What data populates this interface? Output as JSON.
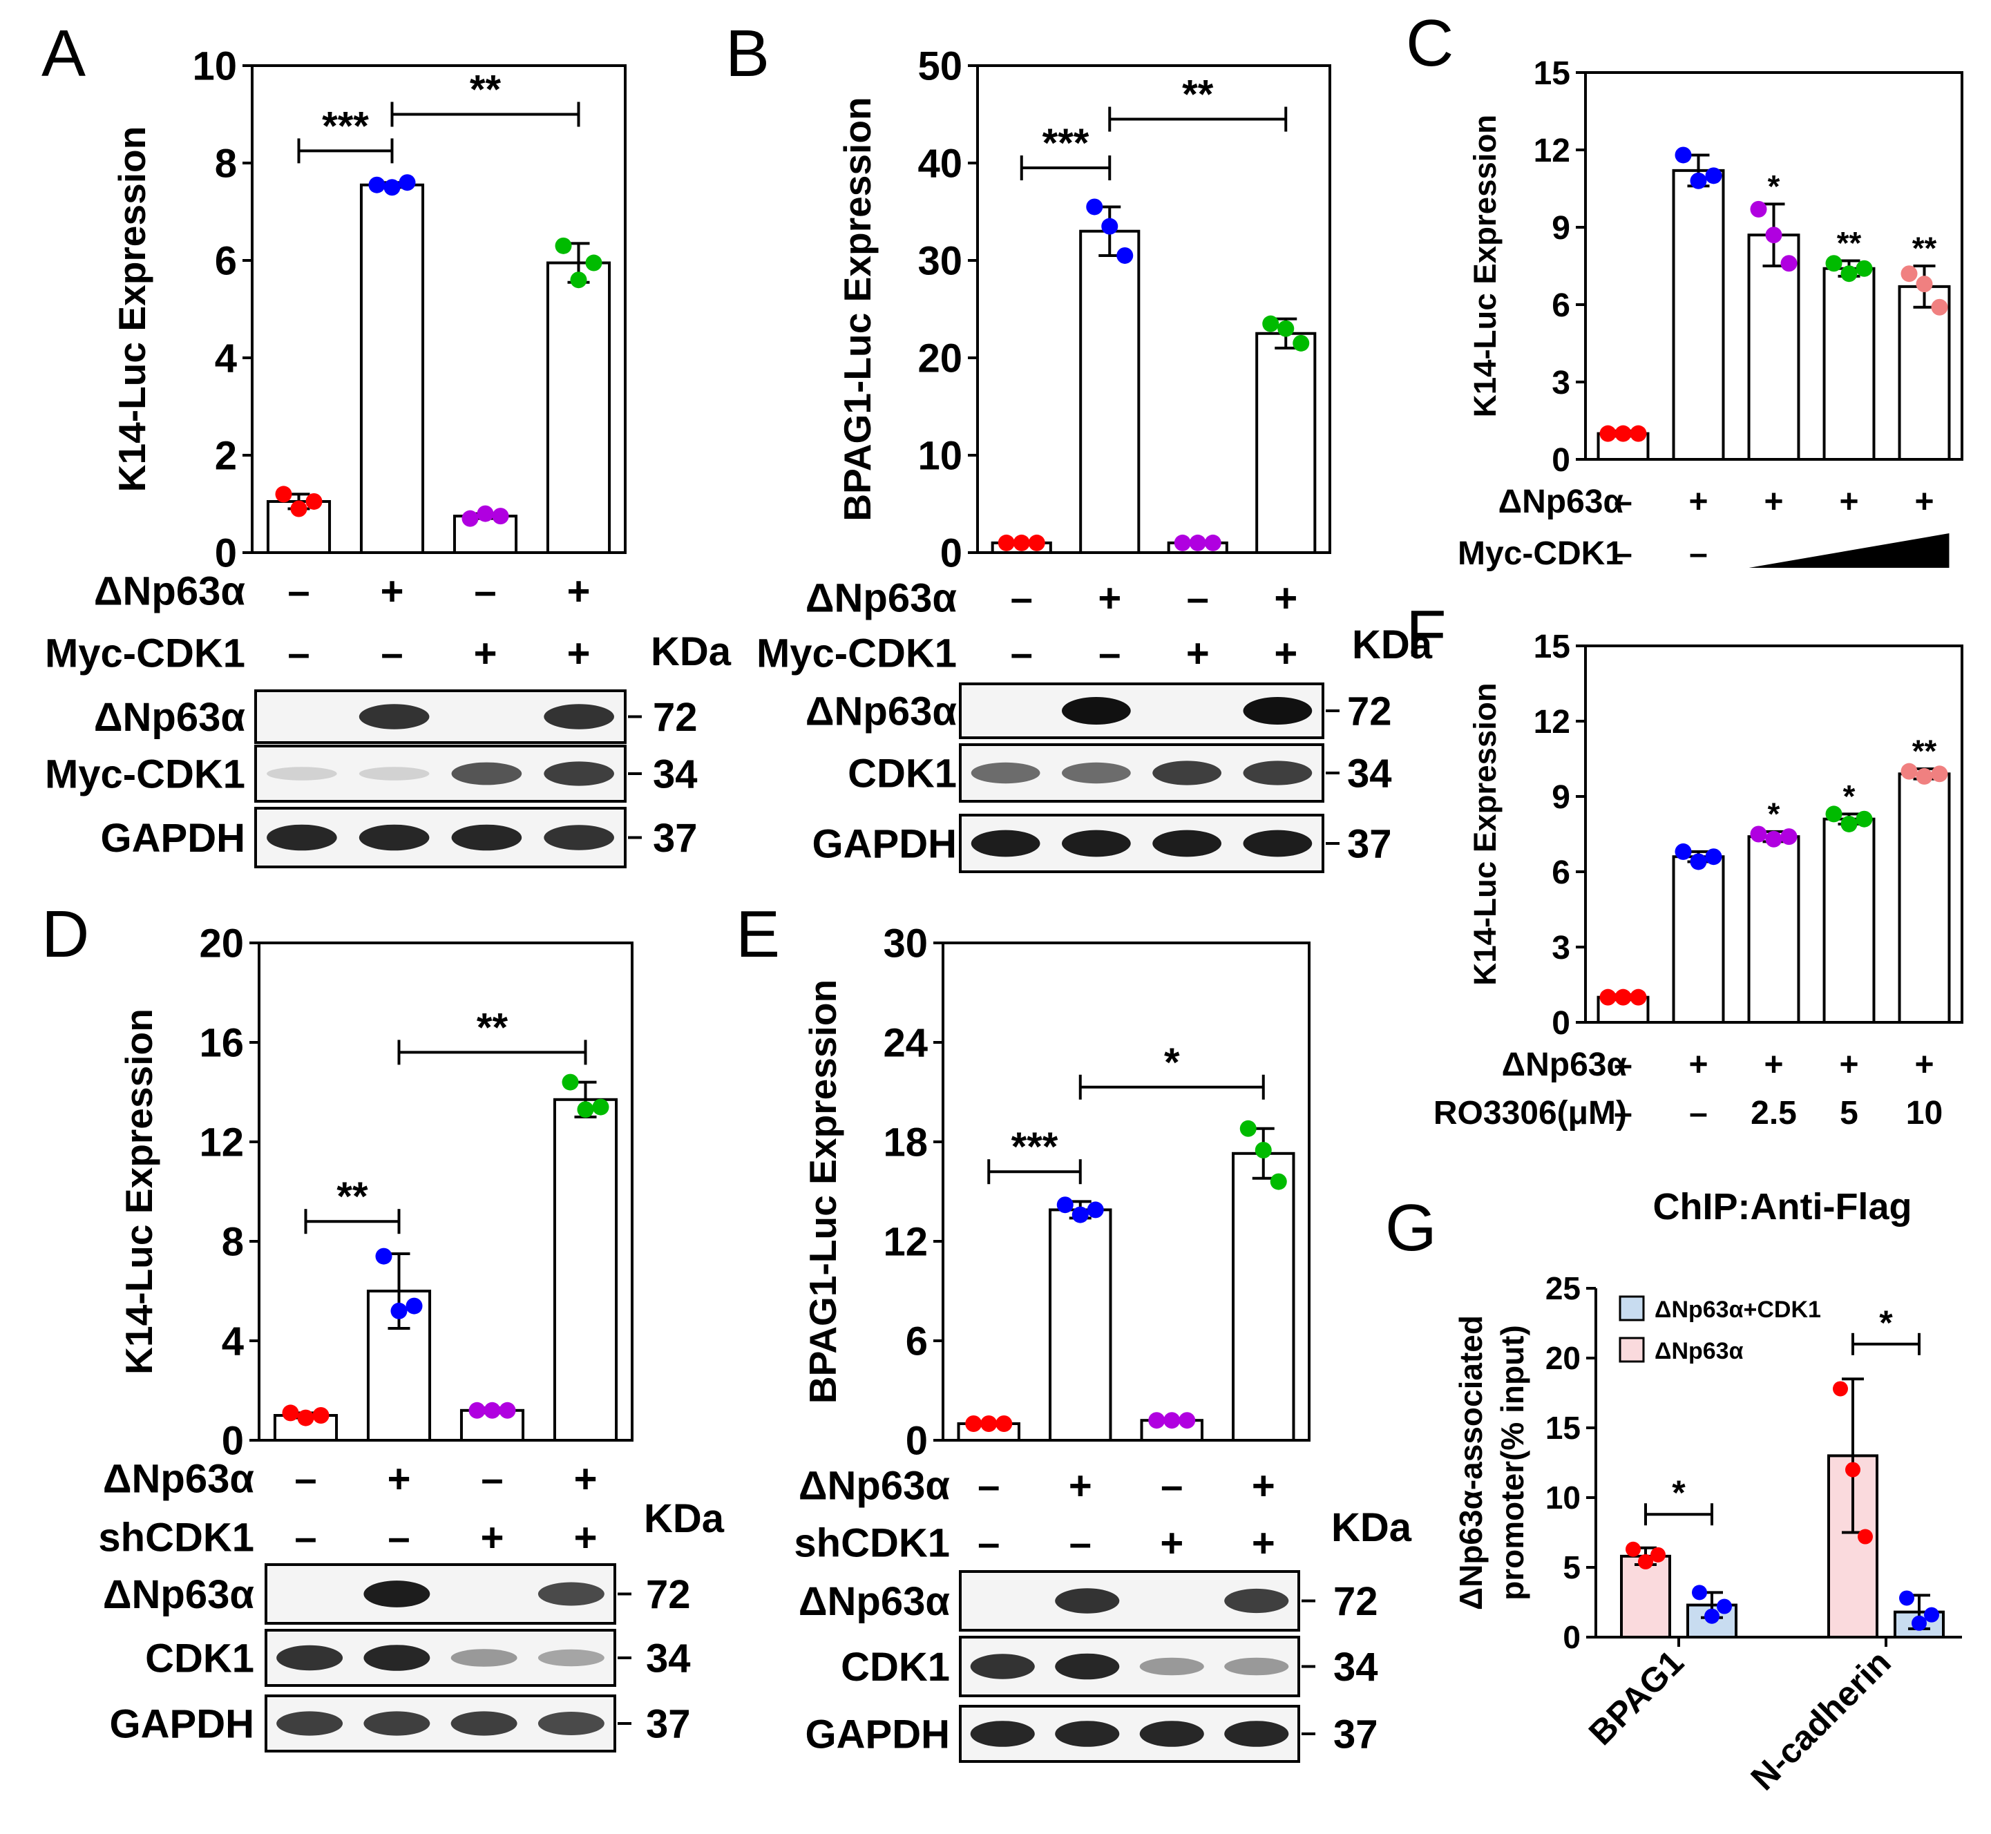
{
  "panels": [
    {
      "id": "A",
      "letter": "A",
      "ylabel": "K14-Luc Expression",
      "yticks": [
        "0",
        "2",
        "4",
        "6",
        "8",
        "10"
      ]
    },
    {
      "id": "B",
      "letter": "B",
      "ylabel": "BPAG1-Luc Expression",
      "yticks": [
        "0",
        "10",
        "20",
        "30",
        "40",
        "50"
      ]
    },
    {
      "id": "C",
      "letter": "C",
      "ylabel": "K14-Luc Expression",
      "yticks": [
        "0",
        "3",
        "6",
        "9",
        "12",
        "15"
      ]
    },
    {
      "id": "D",
      "letter": "D",
      "ylabel": "K14-Luc Expression",
      "yticks": [
        "0",
        "4",
        "8",
        "12",
        "16",
        "20"
      ]
    },
    {
      "id": "E",
      "letter": "E",
      "ylabel": "BPAG1-Luc Expression",
      "yticks": [
        "0",
        "6",
        "12",
        "18",
        "24",
        "30"
      ]
    },
    {
      "id": "F",
      "letter": "F",
      "ylabel": "K14-Luc Expression",
      "yticks": [
        "0",
        "3",
        "6",
        "9",
        "12",
        "15"
      ]
    },
    {
      "id": "G",
      "letter": "G",
      "title": "ChIP:Anti-Flag",
      "ylabel": "ΔNp63α-associated promoter(% input)",
      "ylabel_lines": [
        "ΔNp63α-associated",
        "promoter(% input)"
      ],
      "yticks": [
        "0",
        "5",
        "10",
        "15",
        "20",
        "25"
      ],
      "xticks": [
        "BPAG1",
        "N-cadherin"
      ],
      "legend": [
        "ΔNp63α+CDK1",
        "ΔNp63α"
      ]
    }
  ],
  "conditions": {
    "A": [
      {
        "label": "ΔNp63α",
        "marks": [
          "–",
          "+",
          "–",
          "+"
        ]
      },
      {
        "label": "Myc-CDK1",
        "marks": [
          "–",
          "–",
          "+",
          "+"
        ]
      }
    ],
    "B": [
      {
        "label": "ΔNp63α",
        "marks": [
          "–",
          "+",
          "–",
          "+"
        ]
      },
      {
        "label": "Myc-CDK1",
        "marks": [
          "–",
          "–",
          "+",
          "+"
        ]
      }
    ],
    "C": [
      {
        "label": "ΔNp63α",
        "marks": [
          "–",
          "+",
          "+",
          "+",
          "+"
        ]
      },
      {
        "label": "Myc-CDK1",
        "marks": [
          "–",
          "–"
        ]
      }
    ],
    "D": [
      {
        "label": "ΔNp63α",
        "marks": [
          "–",
          "+",
          "–",
          "+"
        ]
      },
      {
        "label": "shCDK1",
        "marks": [
          "–",
          "–",
          "+",
          "+"
        ]
      }
    ],
    "E": [
      {
        "label": "ΔNp63α",
        "marks": [
          "–",
          "+",
          "–",
          "+"
        ]
      },
      {
        "label": "shCDK1",
        "marks": [
          "–",
          "–",
          "+",
          "+"
        ]
      }
    ],
    "F": [
      {
        "label": "ΔNp63α",
        "marks": [
          "–",
          "+",
          "+",
          "+",
          "+"
        ]
      },
      {
        "label": "RO3306(μM)",
        "marks": [
          "–",
          "–",
          "2.5",
          "5",
          "10"
        ]
      }
    ]
  },
  "blots": {
    "A": {
      "kda_label": "KDa",
      "rows": [
        {
          "label": "ΔNp63α",
          "kda": "72",
          "bands": [
            0,
            0.85,
            0,
            0.85
          ]
        },
        {
          "label": "Myc-CDK1",
          "kda": "34",
          "bands": [
            0.15,
            0.15,
            0.7,
            0.8
          ]
        },
        {
          "label": "GAPDH",
          "kda": "37",
          "bands": [
            0.9,
            0.9,
            0.9,
            0.85
          ]
        }
      ]
    },
    "B": {
      "kda_label": "KDa",
      "rows": [
        {
          "label": "ΔNp63α",
          "kda": "72",
          "bands": [
            0,
            1,
            0,
            1
          ]
        },
        {
          "label": "CDK1",
          "kda": "34",
          "bands": [
            0.6,
            0.6,
            0.8,
            0.8
          ]
        },
        {
          "label": "GAPDH",
          "kda": "37",
          "bands": [
            0.95,
            0.95,
            0.95,
            0.95
          ]
        }
      ]
    },
    "D": {
      "kda_label": "KDa",
      "rows": [
        {
          "label": "ΔNp63α",
          "kda": "72",
          "bands": [
            0,
            0.95,
            0,
            0.75
          ]
        },
        {
          "label": "CDK1",
          "kda": "34",
          "bands": [
            0.85,
            0.9,
            0.4,
            0.35
          ]
        },
        {
          "label": "GAPDH",
          "kda": "37",
          "bands": [
            0.8,
            0.8,
            0.8,
            0.75
          ]
        }
      ]
    },
    "E": {
      "kda_label": "KDa",
      "rows": [
        {
          "label": "ΔNp63α",
          "kda": "72",
          "bands": [
            0,
            0.85,
            0,
            0.8
          ]
        },
        {
          "label": "CDK1",
          "kda": "34",
          "bands": [
            0.85,
            0.9,
            0.4,
            0.4
          ]
        },
        {
          "label": "GAPDH",
          "kda": "37",
          "bands": [
            0.9,
            0.9,
            0.9,
            0.9
          ]
        }
      ]
    }
  },
  "chart_data": [
    {
      "panel": "A",
      "type": "bar",
      "ylim": [
        0,
        10
      ],
      "ylabel": "K14-Luc Expression",
      "values": [
        1.05,
        7.55,
        0.75,
        5.95
      ],
      "errors": [
        0.15,
        0.05,
        0.05,
        0.4
      ],
      "points": [
        [
          1.2,
          0.9,
          1.05
        ],
        [
          7.55,
          7.5,
          7.6
        ],
        [
          0.7,
          0.8,
          0.75
        ],
        [
          6.3,
          5.6,
          5.95
        ]
      ],
      "colors": [
        "#ff0000",
        "#0000ff",
        "#b000e0",
        "#00bb00"
      ],
      "significance": [
        {
          "from": 0,
          "to": 1,
          "label": "***",
          "y": 8.25
        },
        {
          "from": 1,
          "to": 3,
          "label": "**",
          "y": 9.0
        }
      ]
    },
    {
      "panel": "B",
      "type": "bar",
      "ylim": [
        0,
        50
      ],
      "ylabel": "BPAG1-Luc Expression",
      "values": [
        1.0,
        33.0,
        1.0,
        22.5
      ],
      "errors": [
        0.2,
        2.5,
        0.2,
        1.5
      ],
      "points": [
        [
          1,
          1,
          1
        ],
        [
          35.5,
          33.5,
          30.5
        ],
        [
          1,
          1,
          1
        ],
        [
          23.5,
          23,
          21.5
        ]
      ],
      "colors": [
        "#ff0000",
        "#0000ff",
        "#b000e0",
        "#00bb00"
      ],
      "significance": [
        {
          "from": 0,
          "to": 1,
          "label": "***",
          "y": 39.5
        },
        {
          "from": 1,
          "to": 3,
          "label": "**",
          "y": 44.5
        }
      ]
    },
    {
      "panel": "C",
      "type": "bar",
      "ylim": [
        0,
        15
      ],
      "ylabel": "K14-Luc Expression",
      "values": [
        1.0,
        11.2,
        8.7,
        7.4,
        6.7
      ],
      "errors": [
        0.1,
        0.6,
        1.2,
        0.3,
        0.8
      ],
      "points": [
        [
          1,
          1,
          1
        ],
        [
          11.8,
          10.8,
          11
        ],
        [
          9.7,
          8.7,
          7.6
        ],
        [
          7.6,
          7.2,
          7.4
        ],
        [
          7.2,
          6.8,
          5.9
        ]
      ],
      "colors": [
        "#ff0000",
        "#0000ff",
        "#b000e0",
        "#00bb00",
        "#f08080"
      ],
      "significance": [
        {
          "bar": 2,
          "label": "*"
        },
        {
          "bar": 3,
          "label": "**"
        },
        {
          "bar": 4,
          "label": "**"
        }
      ]
    },
    {
      "panel": "D",
      "type": "bar",
      "ylim": [
        0,
        20
      ],
      "ylabel": "K14-Luc Expression",
      "values": [
        1.0,
        6.0,
        1.2,
        13.7
      ],
      "errors": [
        0.1,
        1.5,
        0.1,
        0.7
      ],
      "points": [
        [
          1.1,
          0.9,
          1.0
        ],
        [
          7.4,
          5.2,
          5.4
        ],
        [
          1.2,
          1.2,
          1.2
        ],
        [
          14.4,
          13.3,
          13.4
        ]
      ],
      "colors": [
        "#ff0000",
        "#0000ff",
        "#b000e0",
        "#00bb00"
      ],
      "significance": [
        {
          "from": 0,
          "to": 1,
          "label": "**",
          "y": 8.8
        },
        {
          "from": 1,
          "to": 3,
          "label": "**",
          "y": 15.6
        }
      ]
    },
    {
      "panel": "E",
      "type": "bar",
      "ylim": [
        0,
        30
      ],
      "ylabel": "BPAG1-Luc Expression",
      "values": [
        1.0,
        13.9,
        1.2,
        17.3
      ],
      "errors": [
        0.1,
        0.5,
        0.1,
        1.5
      ],
      "points": [
        [
          1,
          1,
          1
        ],
        [
          14.2,
          13.6,
          13.9
        ],
        [
          1.2,
          1.2,
          1.2
        ],
        [
          18.8,
          17.5,
          15.6
        ]
      ],
      "colors": [
        "#ff0000",
        "#0000ff",
        "#b000e0",
        "#00bb00"
      ],
      "significance": [
        {
          "from": 0,
          "to": 1,
          "label": "***",
          "y": 16.2
        },
        {
          "from": 1,
          "to": 3,
          "label": "*",
          "y": 21.3
        }
      ]
    },
    {
      "panel": "F",
      "type": "bar",
      "ylim": [
        0,
        15
      ],
      "ylabel": "K14-Luc Expression",
      "values": [
        1.0,
        6.6,
        7.4,
        8.1,
        9.9
      ],
      "errors": [
        0.1,
        0.2,
        0.2,
        0.2,
        0.2
      ],
      "points": [
        [
          1,
          1,
          1
        ],
        [
          6.8,
          6.4,
          6.6
        ],
        [
          7.5,
          7.3,
          7.4
        ],
        [
          8.3,
          7.9,
          8.1
        ],
        [
          10,
          9.8,
          9.9
        ]
      ],
      "colors": [
        "#ff0000",
        "#0000ff",
        "#b000e0",
        "#00bb00",
        "#f08080"
      ],
      "significance": [
        {
          "bar": 2,
          "label": "*"
        },
        {
          "bar": 3,
          "label": "*"
        },
        {
          "bar": 4,
          "label": "**"
        }
      ]
    },
    {
      "panel": "G",
      "type": "bar",
      "ylim": [
        0,
        25
      ],
      "title": "ChIP:Anti-Flag",
      "ylabel": "ΔNp63α-associated promoter(% input)",
      "categories": [
        "BPAG1",
        "N-cadherin"
      ],
      "series": [
        {
          "name": "ΔNp63α",
          "fill": "#fadadd",
          "dot": "#ff0000",
          "values": [
            5.8,
            13.0
          ],
          "errors": [
            0.6,
            5.5
          ],
          "points": [
            [
              6.3,
              5.4,
              5.9
            ],
            [
              17.8,
              12.0,
              7.2
            ]
          ]
        },
        {
          "name": "ΔNp63α+CDK1",
          "fill": "#c8dcf0",
          "dot": "#0000ff",
          "values": [
            2.3,
            1.8
          ],
          "errors": [
            0.9,
            1.2
          ],
          "points": [
            [
              3.2,
              1.5,
              2.2
            ],
            [
              2.8,
              1.0,
              1.6
            ]
          ]
        }
      ],
      "significance": [
        {
          "category": 0,
          "label": "*",
          "y": 8.8
        },
        {
          "category": 1,
          "label": "*",
          "y": 21
        }
      ],
      "legend_position": "top-left"
    }
  ]
}
